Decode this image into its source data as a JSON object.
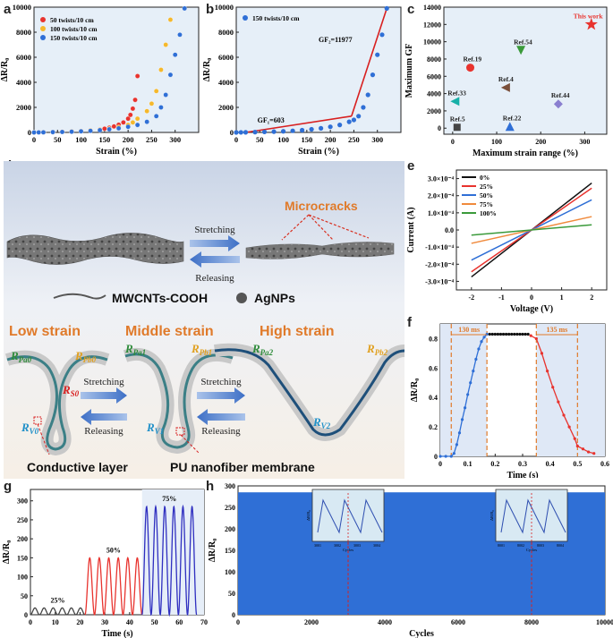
{
  "panels": {
    "a": "a",
    "b": "b",
    "c": "c",
    "d": "d",
    "e": "e",
    "f": "f",
    "g": "g",
    "h": "h"
  },
  "colors": {
    "red": "#e8332e",
    "orange": "#f5b82c",
    "blue": "#2f6fd6",
    "teal": "#17b0a8",
    "purple": "#8a7fd0",
    "brown": "#7a4f3a",
    "green": "#3a9a3a",
    "black": "#111111",
    "bgblue": "#dbe8f5",
    "fiber": "#3b7f86"
  },
  "chart_data": [
    {
      "id": "a",
      "type": "scatter",
      "xlabel": "Strain (%)",
      "ylabel": "ΔR/R₀",
      "xlim": [
        0,
        350
      ],
      "ylim": [
        0,
        10000
      ],
      "xticks": [
        0,
        50,
        100,
        150,
        200,
        250,
        300
      ],
      "yticks": [
        0,
        2000,
        4000,
        6000,
        8000,
        10000
      ],
      "legend": [
        "50  twists/10 cm",
        "100  twists/10 cm",
        "150  twists/10 cm"
      ],
      "series": [
        {
          "name": "50  twists/10 cm",
          "color": "#e8332e",
          "x": [
            0,
            10,
            20,
            40,
            60,
            80,
            100,
            120,
            140,
            150,
            160,
            170,
            180,
            190,
            200,
            205,
            210,
            215,
            220
          ],
          "y": [
            0,
            5,
            15,
            30,
            55,
            80,
            110,
            160,
            230,
            300,
            380,
            480,
            620,
            800,
            1100,
            1400,
            1900,
            2600,
            4500
          ]
        },
        {
          "name": "100  twists/10 cm",
          "color": "#f5b82c",
          "x": [
            0,
            10,
            20,
            40,
            60,
            80,
            100,
            120,
            140,
            160,
            180,
            200,
            210,
            220,
            240,
            250,
            260,
            270,
            280,
            290
          ],
          "y": [
            0,
            5,
            15,
            30,
            50,
            80,
            110,
            160,
            220,
            300,
            420,
            600,
            800,
            1100,
            1700,
            2300,
            3300,
            5000,
            7000,
            9000
          ]
        },
        {
          "name": "150  twists/10 cm",
          "color": "#2f6fd6",
          "x": [
            0,
            10,
            20,
            40,
            60,
            80,
            100,
            120,
            140,
            160,
            180,
            200,
            220,
            240,
            260,
            270,
            280,
            290,
            300,
            310,
            320
          ],
          "y": [
            0,
            5,
            10,
            25,
            40,
            60,
            90,
            130,
            180,
            250,
            330,
            450,
            600,
            850,
            1300,
            2000,
            3000,
            4600,
            6200,
            7800,
            9900
          ]
        }
      ]
    },
    {
      "id": "b",
      "type": "scatter",
      "xlabel": "Strain (%)",
      "ylabel": "ΔR/R₀",
      "xlim": [
        0,
        350
      ],
      "ylim": [
        0,
        10000
      ],
      "xticks": [
        0,
        50,
        100,
        150,
        200,
        250,
        300
      ],
      "yticks": [
        0,
        2000,
        4000,
        6000,
        8000,
        10000
      ],
      "legend": [
        "150 twists/10 cm"
      ],
      "annotations": [
        "GF₁=603",
        "GF₂=11977"
      ],
      "series": [
        {
          "name": "150 twists/10 cm",
          "color": "#2f6fd6",
          "x": [
            0,
            10,
            20,
            40,
            60,
            80,
            100,
            120,
            140,
            160,
            180,
            200,
            220,
            240,
            250,
            260,
            270,
            280,
            290,
            300,
            310,
            320
          ],
          "y": [
            0,
            5,
            10,
            25,
            40,
            60,
            90,
            130,
            180,
            250,
            330,
            450,
            600,
            850,
            1000,
            1300,
            2000,
            3000,
            4600,
            6200,
            7800,
            9900
          ]
        }
      ],
      "fits": [
        {
          "x": [
            20,
            245
          ],
          "y": [
            0,
            1300
          ]
        },
        {
          "x": [
            245,
            320
          ],
          "y": [
            1300,
            9900
          ]
        }
      ]
    },
    {
      "id": "c",
      "type": "scatter",
      "xlabel": "Maximum strain range (%)",
      "ylabel": "Maximum GF",
      "xlim": [
        -20,
        350
      ],
      "ylim": [
        -700,
        14000
      ],
      "xticks": [
        0,
        100,
        200,
        300
      ],
      "yticks": [
        0,
        2000,
        4000,
        6000,
        8000,
        10000,
        12000,
        14000
      ],
      "points": [
        {
          "label": "This work",
          "x": 315,
          "y": 12000,
          "color": "#e8332e",
          "marker": "star"
        },
        {
          "label": "Ref.54",
          "x": 155,
          "y": 9000,
          "color": "#3a9a3a",
          "marker": "tri-down"
        },
        {
          "label": "Ref.19",
          "x": 40,
          "y": 7000,
          "color": "#e8332e",
          "marker": "circle"
        },
        {
          "label": "Ref.4",
          "x": 120,
          "y": 4700,
          "color": "#7a4f3a",
          "marker": "tri-left"
        },
        {
          "label": "Ref.33",
          "x": 5,
          "y": 3100,
          "color": "#17b0a8",
          "marker": "tri-left"
        },
        {
          "label": "Ref.44",
          "x": 240,
          "y": 2800,
          "color": "#8a7fd0",
          "marker": "diamond"
        },
        {
          "label": "Ref.5",
          "x": 10,
          "y": 100,
          "color": "#444444",
          "marker": "square"
        },
        {
          "label": "Ref.22",
          "x": 130,
          "y": 200,
          "color": "#2f6fd6",
          "marker": "tri-up"
        }
      ]
    },
    {
      "id": "e",
      "type": "line",
      "xlabel": "Voltage (V)",
      "ylabel": "Current (A)",
      "xlim": [
        -2.5,
        2.5
      ],
      "ylim": [
        -0.00035,
        0.00035
      ],
      "xticks": [
        -2,
        -1,
        0,
        1,
        2
      ],
      "yticks": [
        "-3.0×10⁻⁴",
        "-2.0×10⁻⁴",
        "-1.0×10⁻⁴",
        "0.0",
        "1.0×10⁻⁴",
        "2.0×10⁻⁴",
        "3.0×10⁻⁴"
      ],
      "ytick_values": [
        -0.0003,
        -0.0002,
        -0.0001,
        0,
        0.0001,
        0.0002,
        0.0003
      ],
      "series": [
        {
          "name": "0%",
          "color": "#111111",
          "slope": 0.000137
        },
        {
          "name": "25%",
          "color": "#e8332e",
          "slope": 0.000122
        },
        {
          "name": "50%",
          "color": "#2f6fd6",
          "slope": 8.8e-05
        },
        {
          "name": "75%",
          "color": "#f08a3c",
          "slope": 3.9e-05
        },
        {
          "name": "100%",
          "color": "#3a9a3a",
          "slope": 1.5e-05
        }
      ]
    },
    {
      "id": "f",
      "type": "line",
      "xlabel": "Time (s)",
      "ylabel": "ΔR/R₀",
      "xlim": [
        0,
        0.6
      ],
      "ylim": [
        0,
        0.9
      ],
      "xticks": [
        0.0,
        0.1,
        0.2,
        0.3,
        0.4,
        0.5,
        0.6
      ],
      "yticks": [
        0.0,
        0.2,
        0.4,
        0.6,
        0.8
      ],
      "annotations": [
        "130 ms",
        "135 ms"
      ],
      "series": [
        {
          "name": "rise",
          "color": "#2f6fd6",
          "x": [
            0,
            0.02,
            0.04,
            0.05,
            0.06,
            0.07,
            0.08,
            0.09,
            0.1,
            0.11,
            0.12,
            0.13,
            0.14,
            0.15,
            0.16,
            0.17
          ],
          "y": [
            0,
            0,
            0,
            0.02,
            0.08,
            0.16,
            0.25,
            0.33,
            0.42,
            0.5,
            0.58,
            0.66,
            0.73,
            0.78,
            0.81,
            0.83
          ]
        },
        {
          "name": "hold",
          "color": "#111111",
          "x": [
            0.18,
            0.19,
            0.2,
            0.21,
            0.22,
            0.23,
            0.24,
            0.25,
            0.26,
            0.27,
            0.28,
            0.29,
            0.3,
            0.31,
            0.32
          ],
          "y": [
            0.83,
            0.83,
            0.83,
            0.83,
            0.83,
            0.83,
            0.83,
            0.83,
            0.83,
            0.83,
            0.83,
            0.83,
            0.83,
            0.83,
            0.83
          ]
        },
        {
          "name": "fall",
          "color": "#e8332e",
          "x": [
            0.33,
            0.35,
            0.37,
            0.39,
            0.41,
            0.43,
            0.45,
            0.47,
            0.49,
            0.5,
            0.52,
            0.54,
            0.56
          ],
          "y": [
            0.82,
            0.8,
            0.7,
            0.58,
            0.47,
            0.37,
            0.28,
            0.2,
            0.12,
            0.07,
            0.05,
            0.03,
            0.02
          ]
        }
      ]
    },
    {
      "id": "g",
      "type": "line",
      "xlabel": "Time (s)",
      "ylabel": "ΔR/R₀",
      "xlim": [
        0,
        70
      ],
      "ylim": [
        0,
        330
      ],
      "xticks": [
        0,
        10,
        20,
        30,
        40,
        50,
        60,
        70
      ],
      "yticks": [
        0,
        50,
        100,
        150,
        200,
        250,
        300
      ],
      "annotations": [
        "25%",
        "50%",
        "75%"
      ],
      "series": [
        {
          "name": "25%",
          "color": "#444444",
          "start": 0,
          "end": 22,
          "peak": 18,
          "cycles": 6
        },
        {
          "name": "50%",
          "color": "#e8332e",
          "start": 22,
          "end": 45,
          "peak": 150,
          "cycles": 6
        },
        {
          "name": "75%",
          "color": "#2f2fc0",
          "start": 45,
          "end": 67,
          "peak": 285,
          "cycles": 6
        }
      ]
    },
    {
      "id": "h",
      "type": "area",
      "xlabel": "Cycles",
      "ylabel": "ΔR/R₀",
      "xlim": [
        0,
        10000
      ],
      "ylim": [
        0,
        300
      ],
      "xticks": [
        0,
        2000,
        4000,
        6000,
        8000,
        10000
      ],
      "yticks": [
        0,
        50,
        100,
        150,
        200,
        250,
        300
      ],
      "series": [
        {
          "name": "cycling",
          "color": "#2f6fd6",
          "value": 285
        }
      ],
      "insets": [
        {
          "xticks": [
            "3001",
            "3002",
            "3003",
            "3004"
          ],
          "xlabel": "Cycles",
          "ylabel": "ΔR/R₀"
        },
        {
          "xticks": [
            "8001",
            "8002",
            "8003",
            "8004"
          ],
          "xlabel": "Cycles",
          "ylabel": "ΔR/R₀"
        }
      ]
    }
  ],
  "schematic": {
    "stretching": "Stretching",
    "releasing": "Releasing",
    "microcracks": "Microcracks",
    "mwcnts": "MWCNTs-COOH",
    "agnps": "AgNPs",
    "low": "Low strain",
    "middle": "Middle strain",
    "high": "High strain",
    "conductive": "Conductive layer",
    "pu": "PU nanofiber membrane",
    "labels": {
      "rpa0": "Pa0",
      "rpb0": "Pb0",
      "rs0": "S0",
      "rv0": "V0",
      "rpa1": "Pa1",
      "rpb1": "Pb1",
      "rv1": "V1",
      "rpa2": "Pa2",
      "rpb2": "Pb2",
      "rv2": "V2"
    }
  }
}
